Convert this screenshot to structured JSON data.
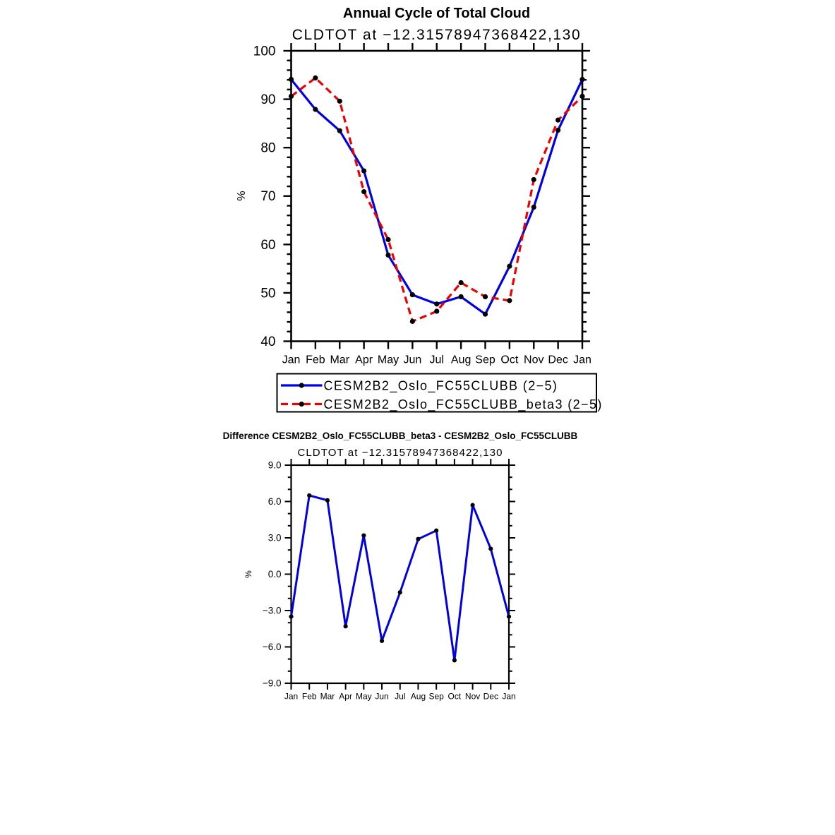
{
  "figure": {
    "background": "#ffffff",
    "frame_color": "#000000",
    "marker_color": "#000000"
  },
  "chart_data": [
    {
      "id": "annual-cycle",
      "type": "line",
      "title": "Annual Cycle of Total Cloud",
      "subtitle": "CLDTOT at −12.31578947368422,130",
      "ylabel": "%",
      "xlabel": "",
      "categories": [
        "Jan",
        "Feb",
        "Mar",
        "Apr",
        "May",
        "Jun",
        "Jul",
        "Aug",
        "Sep",
        "Oct",
        "Nov",
        "Dec",
        "Jan"
      ],
      "ylim": [
        40,
        100
      ],
      "yticks": [
        40,
        50,
        60,
        70,
        80,
        90,
        100
      ],
      "ytick_labels": [
        "40",
        "50",
        "60",
        "70",
        "80",
        "90",
        "100"
      ],
      "yminor_step": 2,
      "grid": false,
      "legend_position": "below-left-box",
      "series": [
        {
          "name": "CESM2B2_Oslo_FC55CLUBB (2−5)",
          "color": "#0000e6",
          "line_style": "solid",
          "marker": "circle",
          "marker_color": "#000000",
          "values": [
            94.1,
            87.9,
            83.5,
            75.2,
            57.8,
            49.6,
            47.7,
            49.2,
            45.6,
            55.5,
            67.7,
            83.6,
            94.1
          ]
        },
        {
          "name": "CESM2B2_Oslo_FC55CLUBB_beta3 (2−5)",
          "color": "#ee0000",
          "line_style": "dashed",
          "marker": "circle",
          "marker_color": "#000000",
          "values": [
            90.6,
            94.4,
            89.6,
            70.9,
            61.0,
            44.1,
            46.2,
            52.1,
            49.2,
            48.4,
            73.4,
            85.7,
            90.6
          ]
        }
      ]
    },
    {
      "id": "difference",
      "type": "line",
      "title": "Difference CESM2B2_Oslo_FC55CLUBB_beta3 - CESM2B2_Oslo_FC55CLUBB",
      "subtitle": "CLDTOT at −12.31578947368422,130",
      "ylabel": "%",
      "xlabel": "",
      "categories": [
        "Jan",
        "Feb",
        "Mar",
        "Apr",
        "May",
        "Jun",
        "Jul",
        "Aug",
        "Sep",
        "Oct",
        "Nov",
        "Dec",
        "Jan"
      ],
      "ylim": [
        -9,
        9
      ],
      "yticks": [
        -9,
        -6,
        -3,
        0,
        3,
        6,
        9
      ],
      "ytick_labels": [
        "−9.0",
        "−6.0",
        "−3.0",
        "0.0",
        "3.0",
        "6.0",
        "9.0"
      ],
      "yminor_step": 1,
      "grid": false,
      "legend_position": "none",
      "series": [
        {
          "name": "Difference",
          "color": "#0000e6",
          "line_style": "solid",
          "marker": "circle",
          "marker_color": "#000000",
          "values": [
            -3.5,
            6.5,
            6.1,
            -4.3,
            3.2,
            -5.5,
            -1.5,
            2.9,
            3.6,
            -7.1,
            5.7,
            2.1,
            -3.5
          ]
        }
      ]
    }
  ]
}
